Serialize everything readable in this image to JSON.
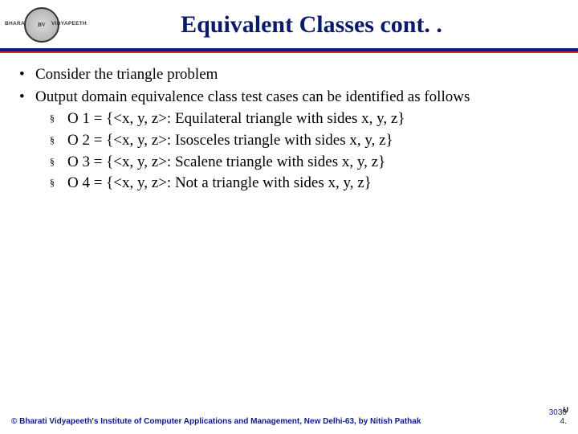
{
  "header": {
    "logo": {
      "banner_left": "BHARATI",
      "banner_right": "VIDYAPEETH",
      "inner": "BV"
    },
    "title": "Equivalent Classes cont. .",
    "bar_color": "#0b1b8a",
    "accent_color": "#cc2a1a"
  },
  "content": {
    "bullets": [
      {
        "text": "Consider the triangle problem"
      },
      {
        "text": "Output domain equivalence class test cases can be identified as follows",
        "sub": [
          "O 1 = {<x, y, z>: Equilateral triangle with sides x, y, z}",
          "O 2 = {<x, y, z>: Isosceles triangle with sides x, y, z}",
          "O 3 = {<x, y, z>: Scalene triangle with sides x, y, z}",
          "O 4 = {<x, y, z>: Not a triangle with sides x, y, z}"
        ]
      }
    ]
  },
  "footer": {
    "copyright": "© Bharati Vidyapeeth's Institute of Computer Applications and Management, New Delhi-63, by Nitish Pathak",
    "page_primary": "3030",
    "page_suffix": "U",
    "page_secondary": "4."
  }
}
